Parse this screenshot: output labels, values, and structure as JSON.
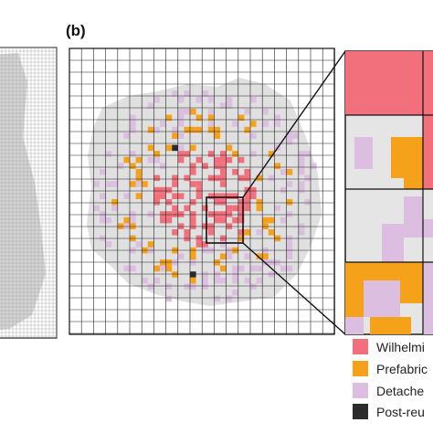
{
  "figure": {
    "panel_label": "(b)"
  },
  "colors": {
    "wilhelminian": "#f2707c",
    "prefabricated": "#f5a11a",
    "detached": "#dcbfe0",
    "post_reunification": "#2b2b2b",
    "city_fill": "#e0e0e0",
    "grid_line": "#222222"
  },
  "legend": [
    {
      "label": "Wilhelmi",
      "color": "#f2707c"
    },
    {
      "label": "Prefabric",
      "color": "#f5a11a"
    },
    {
      "label": "Detache",
      "color": "#dcbfe0"
    },
    {
      "label": "Post-reu",
      "color": "#2b2b2b"
    }
  ]
}
